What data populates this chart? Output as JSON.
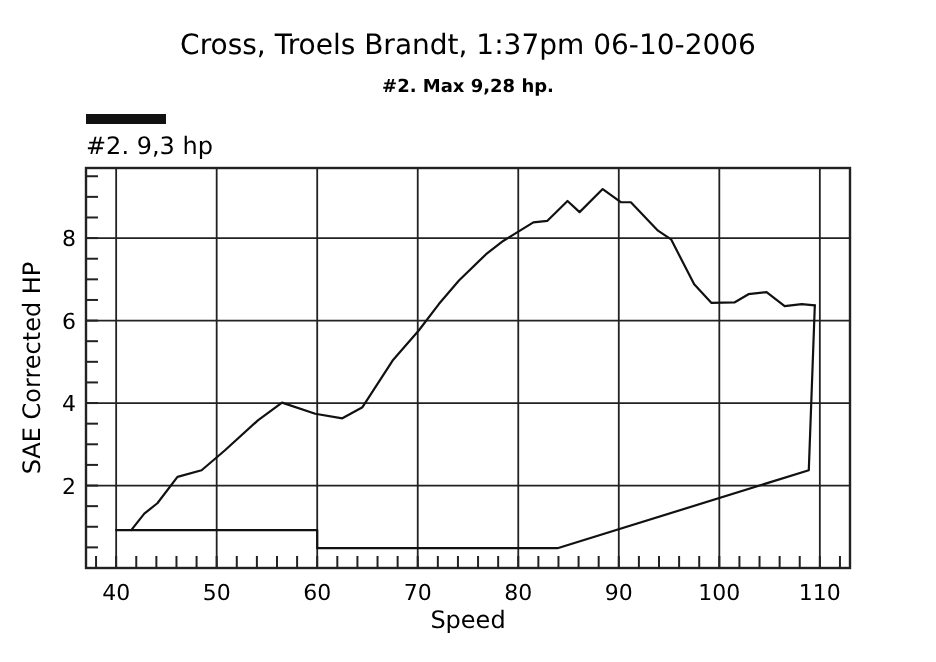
{
  "chart_data": {
    "type": "line",
    "title": "Cross, Troels Brandt,  1:37pm  06-10-2006",
    "subtitle": "#2. Max 9,28 hp.",
    "xlabel": "Speed",
    "ylabel": "SAE Corrected HP",
    "xlim": [
      37,
      113
    ],
    "ylim": [
      0,
      9.7
    ],
    "xticks": [
      {
        "value": 38,
        "label": null
      },
      40,
      {
        "value": 42,
        "label": null
      },
      {
        "value": 44,
        "label": null
      },
      {
        "value": 46,
        "label": null
      },
      {
        "value": 48,
        "label": null
      },
      50,
      {
        "value": 52,
        "label": null
      },
      {
        "value": 54,
        "label": null
      },
      {
        "value": 56,
        "label": null
      },
      {
        "value": 58,
        "label": null
      },
      60,
      {
        "value": 62,
        "label": null
      },
      {
        "value": 64,
        "label": null
      },
      {
        "value": 66,
        "label": null
      },
      {
        "value": 68,
        "label": null
      },
      70,
      {
        "value": 72,
        "label": null
      },
      {
        "value": 74,
        "label": null
      },
      {
        "value": 76,
        "label": null
      },
      {
        "value": 78,
        "label": null
      },
      80,
      {
        "value": 82,
        "label": null
      },
      {
        "value": 84,
        "label": null
      },
      {
        "value": 86,
        "label": null
      },
      {
        "value": 88,
        "label": null
      },
      90,
      {
        "value": 92,
        "label": null
      },
      {
        "value": 94,
        "label": null
      },
      {
        "value": 96,
        "label": null
      },
      {
        "value": 98,
        "label": null
      },
      100,
      {
        "value": 102,
        "label": null
      },
      {
        "value": 104,
        "label": null
      },
      {
        "value": 106,
        "label": null
      },
      {
        "value": 108,
        "label": null
      },
      110,
      {
        "value": 112,
        "label": null
      }
    ],
    "yticks": [
      {
        "value": 0.5,
        "label": null
      },
      {
        "value": 1,
        "label": null
      },
      {
        "value": 1.5,
        "label": null
      },
      2,
      {
        "value": 2.5,
        "label": null
      },
      {
        "value": 3,
        "label": null
      },
      {
        "value": 3.5,
        "label": null
      },
      4,
      {
        "value": 4.5,
        "label": null
      },
      {
        "value": 5,
        "label": null
      },
      {
        "value": 5.5,
        "label": null
      },
      6,
      {
        "value": 6.5,
        "label": null
      },
      {
        "value": 7,
        "label": null
      },
      {
        "value": 7.5,
        "label": null
      },
      8,
      {
        "value": 8.5,
        "label": null
      },
      {
        "value": 9,
        "label": null
      },
      {
        "value": 9.5,
        "label": null
      }
    ],
    "grid": true,
    "legend": "top left",
    "marker": "none",
    "line_style": "solid",
    "series": [
      {
        "name": "#2. 9,3 hp",
        "color": "#111111",
        "x": [
          41.5,
          42.8,
          44.1,
          46.1,
          48.5,
          50.8,
          54.1,
          56.5,
          59.8,
          62.5,
          64.5,
          67.5,
          70.1,
          72.1,
          74.1,
          76.8,
          78.5,
          81.5,
          82.9,
          84.9,
          86.1,
          88.4,
          90.2,
          91.2,
          93.9,
          95.2,
          97.5,
          99.2,
          101.5,
          102.9,
          104.7,
          106.5,
          108.2,
          109.5
        ],
        "values": [
          0.92,
          1.32,
          1.57,
          2.21,
          2.37,
          2.85,
          3.58,
          4.01,
          3.74,
          3.63,
          3.9,
          5.03,
          5.76,
          6.4,
          6.97,
          7.61,
          7.93,
          8.38,
          8.42,
          8.9,
          8.63,
          9.19,
          8.87,
          8.87,
          8.18,
          7.97,
          6.88,
          6.43,
          6.44,
          6.64,
          6.69,
          6.35,
          6.4,
          6.37
        ]
      },
      {
        "color": "#111111",
        "x": [
          40,
          60,
          60,
          83.9,
          108.9,
          109.5
        ],
        "values": [
          0.92,
          0.92,
          0.48,
          0.48,
          2.37,
          6.37
        ]
      }
    ]
  }
}
